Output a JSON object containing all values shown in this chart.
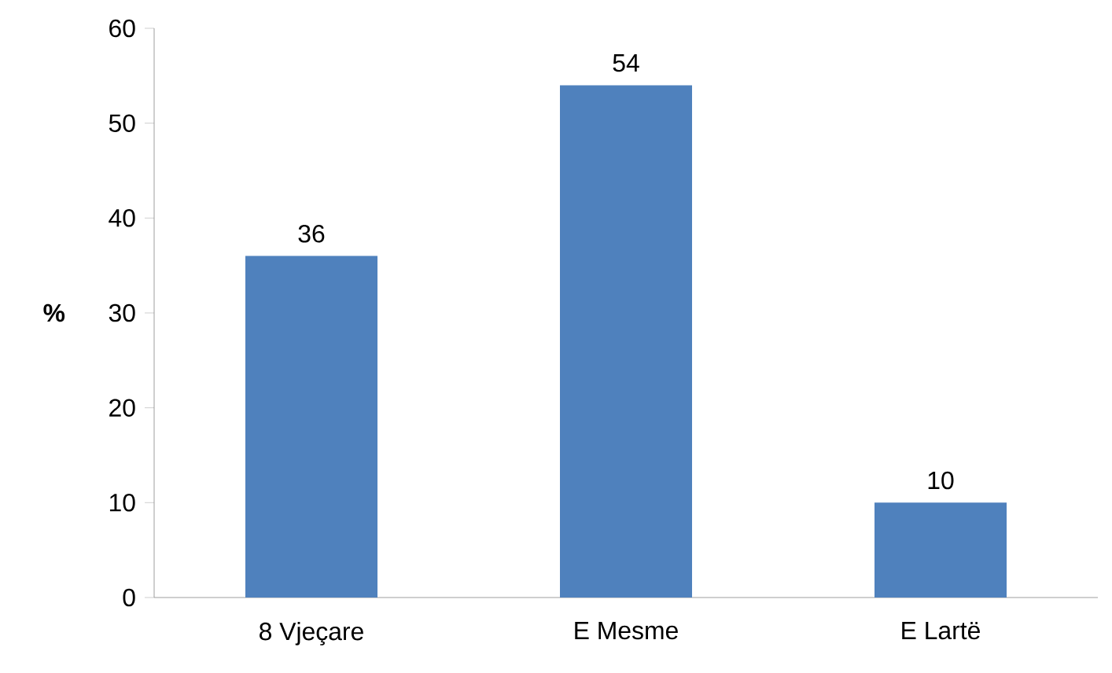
{
  "chart_data": {
    "type": "bar",
    "ylabel": "%",
    "categories": [
      "8 Vjeçare",
      "E Mesme",
      "E Lartë"
    ],
    "values": [
      36,
      54,
      10
    ],
    "color": "#4f81bd",
    "ylim": [
      0,
      60
    ],
    "yticks": [
      0,
      10,
      20,
      30,
      40,
      50,
      60
    ],
    "grid": false,
    "data_labels": true
  }
}
